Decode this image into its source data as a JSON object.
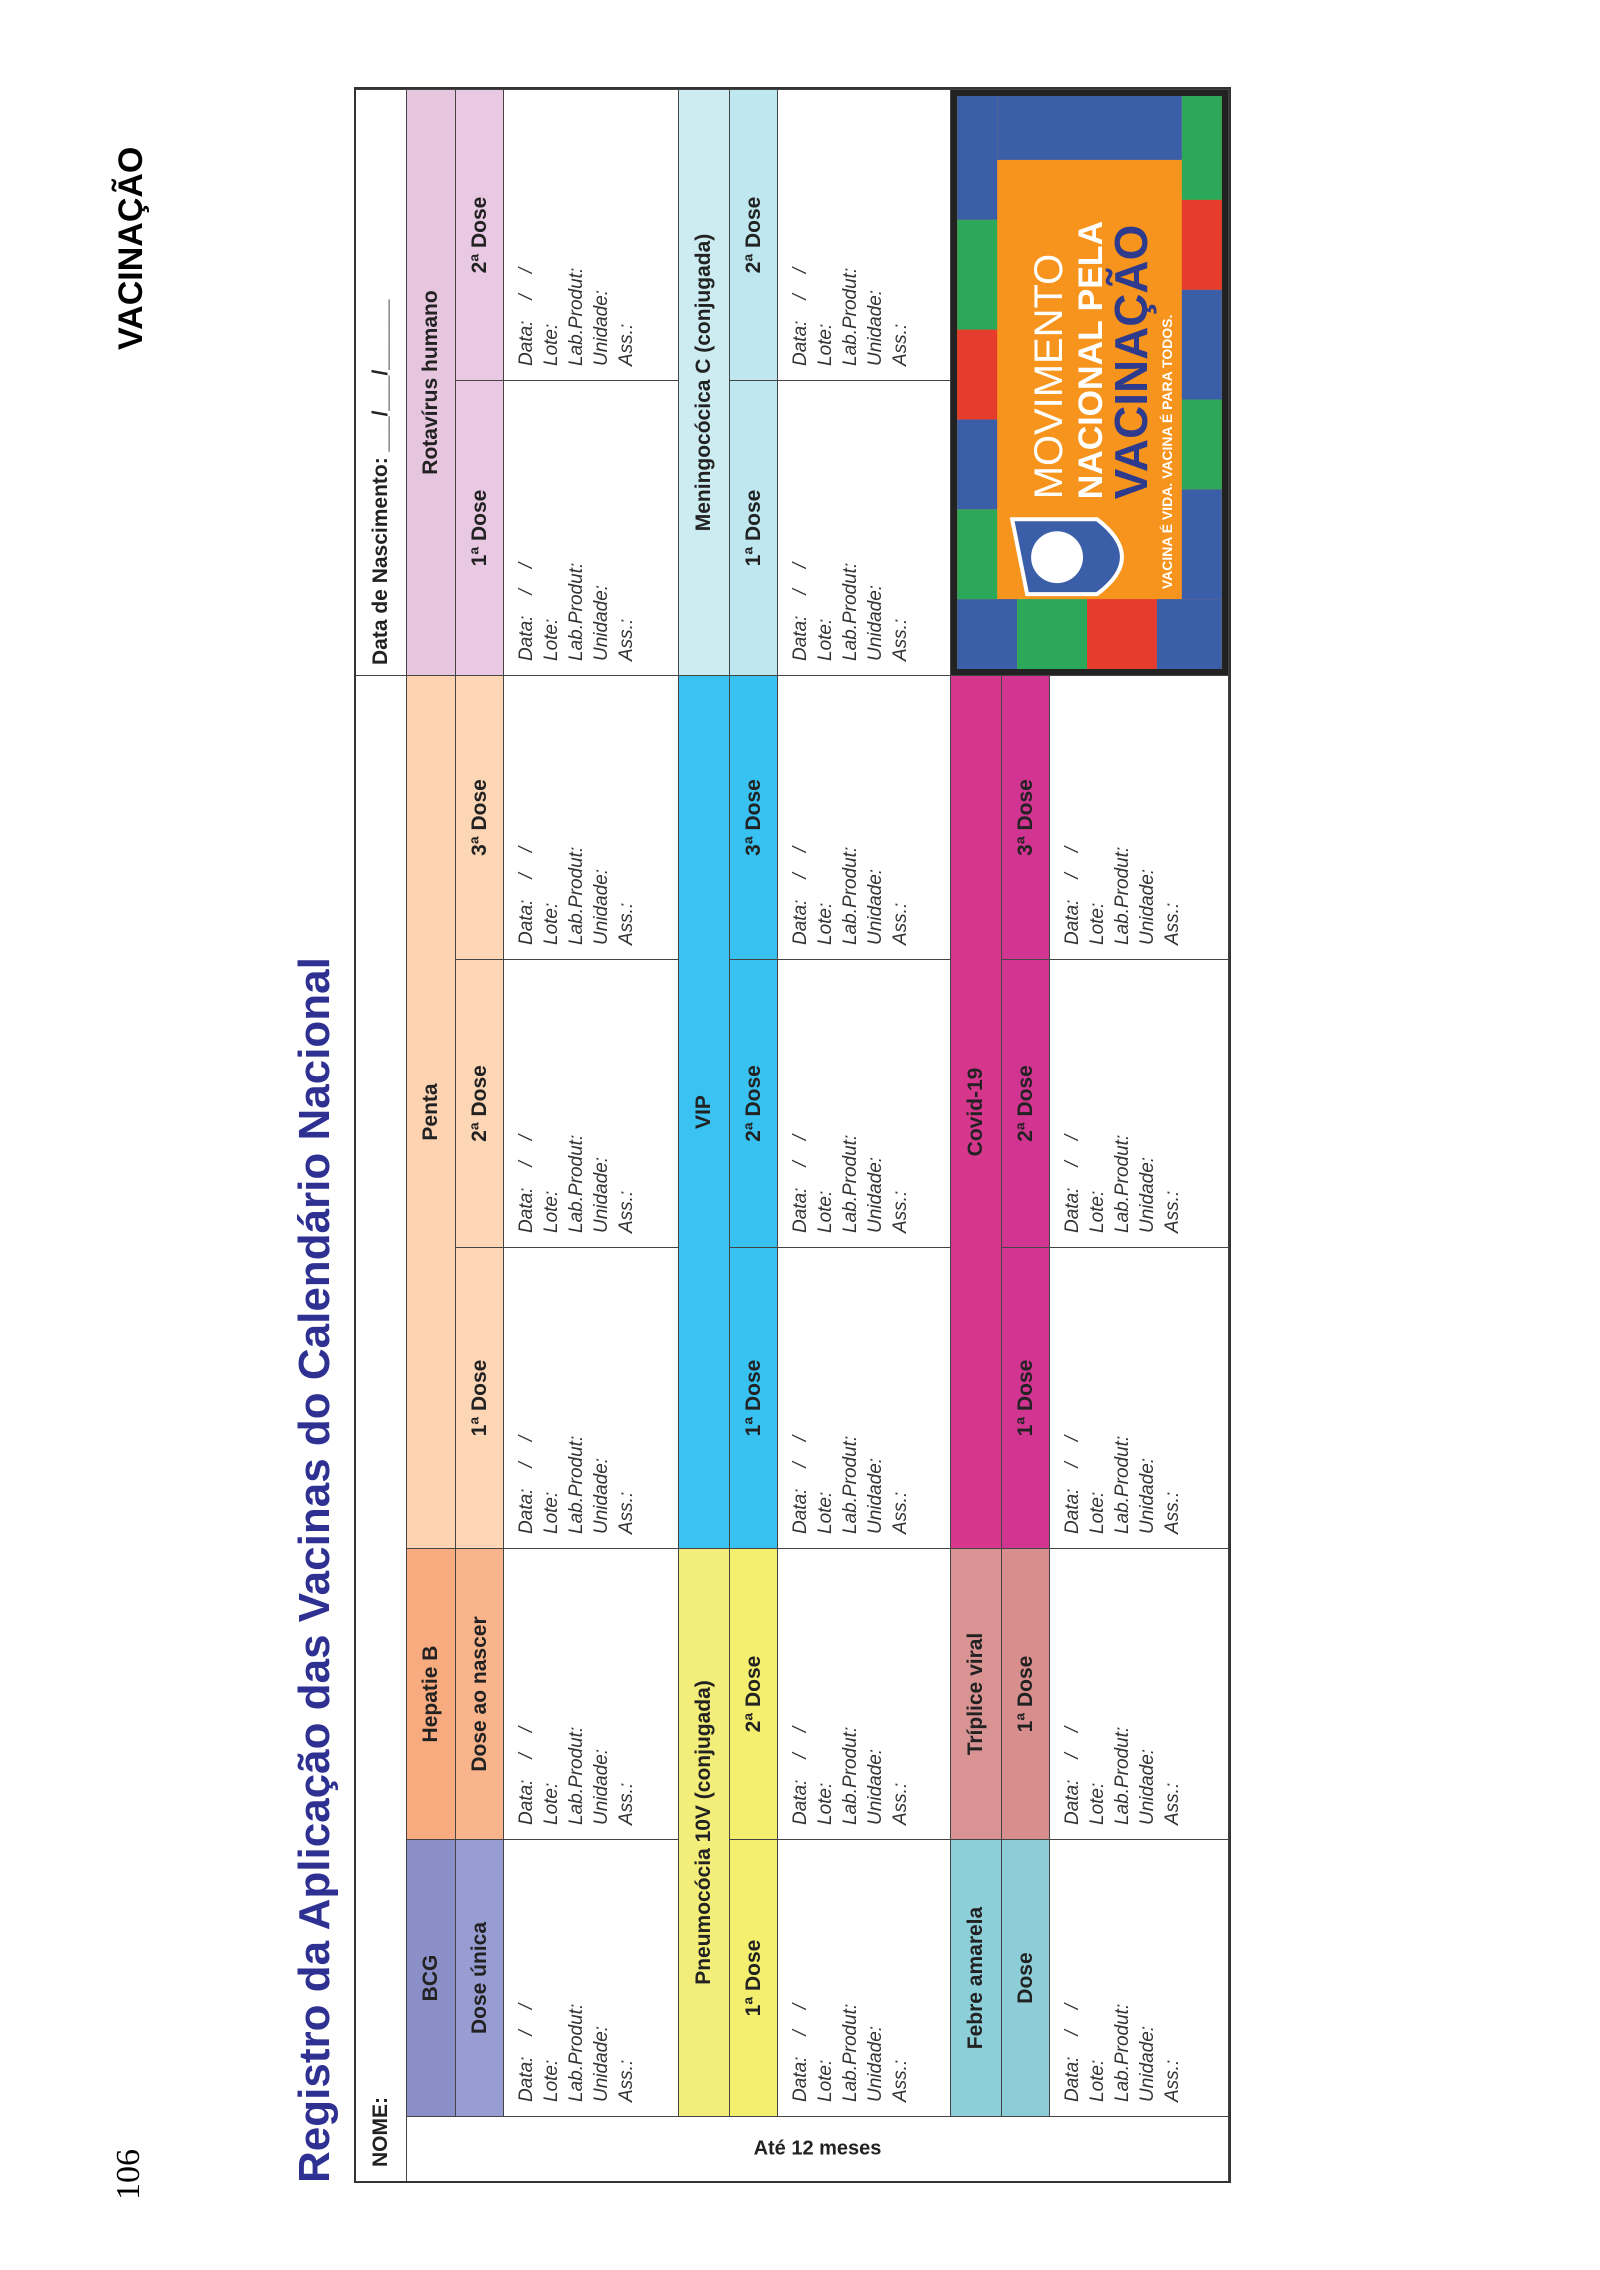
{
  "header": {
    "page_number": "106",
    "section": "VACINAÇÃO",
    "title": "Registro da Aplicação das Vacinas do Calendário Nacional"
  },
  "table": {
    "name_label": "NOME:",
    "birth_label": "Data de Nascimento: ___/___/______",
    "side_label": "Até 12 meses",
    "fields": [
      "Data:    /    /",
      "Lote:",
      "Lab.Produt:",
      "Unidade:",
      "Ass.:"
    ],
    "bands": [
      {
        "vaccines": [
          {
            "name": "BCG",
            "header_color": "#8a8fc8",
            "dose_color": "#979cd2",
            "doses": [
              "Dose única"
            ]
          },
          {
            "name": "Hepatie B",
            "header_color": "#f9ab80",
            "dose_color": "#fab48c",
            "doses": [
              "Dose ao nascer"
            ]
          },
          {
            "name": "Penta",
            "header_color": "#fdd3b2",
            "dose_color": "#fdd6b6",
            "doses": [
              "1ª Dose",
              "2ª Dose",
              "3ª Dose"
            ]
          },
          {
            "name": "Rotavírus humano",
            "header_color": "#e6c5df",
            "dose_color": "#e8c8e2",
            "doses": [
              "1ª Dose",
              "2ª Dose"
            ]
          }
        ]
      },
      {
        "vaccines": [
          {
            "name": "Pneumocócia 10V (conjugada)",
            "header_color": "#f2ee79",
            "dose_color": "#f4ef6e",
            "doses": [
              "1ª Dose",
              "2ª Dose"
            ]
          },
          {
            "name": "VIP",
            "header_color": "#3ac3f2",
            "dose_color": "#37c2f2",
            "doses": [
              "1ª Dose",
              "2ª Dose",
              "3ª Dose"
            ]
          },
          {
            "name": "Meningocócica C (conjugada)",
            "header_color": "#ccecf1",
            "dose_color": "#bfe7ef",
            "doses": [
              "1ª Dose",
              "2ª Dose"
            ]
          }
        ]
      },
      {
        "vaccines": [
          {
            "name": "Febre amarela",
            "header_color": "#8ccfd9",
            "dose_color": "#8ccdd8",
            "doses": [
              "Dose"
            ]
          },
          {
            "name": "Tríplice viral",
            "header_color": "#d99393",
            "dose_color": "#d98e8e",
            "doses": [
              "1ª Dose"
            ]
          },
          {
            "name": "Covid-19",
            "header_color": "#d6378d",
            "dose_color": "#d13591",
            "doses": [
              "1ª Dose",
              "2ª Dose",
              "3ª Dose"
            ]
          }
        ]
      }
    ]
  },
  "poster": {
    "line1": "MOVIMENTO",
    "line2": "NACIONAL PELA",
    "line3": "VACINAÇÃO",
    "slogan": "VACINA É VIDA. VACINA É PARA TODOS."
  }
}
